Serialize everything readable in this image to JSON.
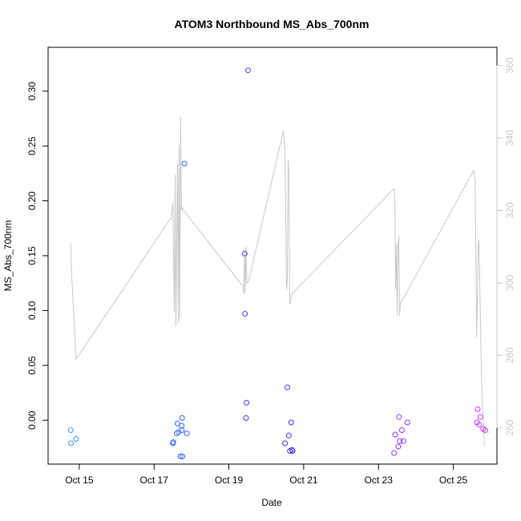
{
  "chart_data": {
    "type": "scatter",
    "title": "ATOM3 Northbound MS_Abs_700nm",
    "xlabel": "Date",
    "ylabel": "MS_Abs_700nm",
    "x_ticks": [
      "Oct 15",
      "Oct 17",
      "Oct 19",
      "Oct 21",
      "Oct 23",
      "Oct 25"
    ],
    "y_ticks": [
      "0.00",
      "0.05",
      "0.10",
      "0.15",
      "0.20",
      "0.25",
      "0.30"
    ],
    "y2_ticks": [
      "260",
      "280",
      "300",
      "320",
      "340",
      "360"
    ],
    "xlim": [
      "2016-10-14 04:00",
      "2016-10-26 04:00"
    ],
    "ylim": [
      -0.04,
      0.34
    ],
    "y2lim": [
      250,
      365
    ],
    "colors": {
      "points_start": "#3399ff",
      "points_mid": "#3333ff",
      "points_end": "#cc33ff",
      "line": "#c8c8c8",
      "right_axis": "#c8c8c8"
    },
    "series": [
      {
        "type": "scatter",
        "x": [
          "2016-10-14 18:30",
          "2016-10-14 18:40",
          "2016-10-14 22:00",
          "2016-10-17 12:00",
          "2016-10-17 12:20",
          "2016-10-17 14:30",
          "2016-10-17 15:00",
          "2016-10-17 15:40",
          "2016-10-17 16:50",
          "2016-10-17 17:40",
          "2016-10-17 17:50",
          "2016-10-17 18:00",
          "2016-10-17 18:10",
          "2016-10-17 19:30",
          "2016-10-17 21:00",
          "2016-10-19 10:10",
          "2016-10-19 10:20",
          "2016-10-19 11:00",
          "2016-10-19 11:20",
          "2016-10-19 12:20",
          "2016-10-20 12:00",
          "2016-10-20 13:30",
          "2016-10-20 14:30",
          "2016-10-20 15:10",
          "2016-10-20 16:00",
          "2016-10-20 16:30",
          "2016-10-20 16:50",
          "2016-10-23 10:00",
          "2016-10-23 10:40",
          "2016-10-23 12:40",
          "2016-10-23 13:10",
          "2016-10-23 13:40",
          "2016-10-23 15:00",
          "2016-10-23 16:00",
          "2016-10-23 18:30",
          "2016-10-25 15:10",
          "2016-10-25 15:40",
          "2016-10-25 16:40",
          "2016-10-25 17:20",
          "2016-10-25 19:10",
          "2016-10-25 20:30"
        ],
        "y": [
          -0.009,
          -0.021,
          -0.017,
          -0.021,
          -0.02,
          -0.012,
          -0.003,
          -0.011,
          -0.033,
          -0.005,
          -0.009,
          0.002,
          -0.033,
          0.234,
          -0.012,
          0.152,
          0.097,
          0.002,
          0.016,
          0.319,
          -0.021,
          0.03,
          -0.014,
          -0.028,
          -0.002,
          -0.027,
          -0.028,
          -0.03,
          -0.013,
          -0.024,
          0.003,
          -0.019,
          -0.009,
          -0.019,
          -0.002,
          -0.002,
          0.01,
          -0.004,
          0.003,
          -0.008,
          -0.009
        ]
      },
      {
        "type": "line",
        "axis": "right",
        "x": [
          "2016-10-14 18:30",
          "2016-10-14 19:00",
          "2016-10-14 22:00",
          "2016-10-17 11:00",
          "2016-10-17 12:00",
          "2016-10-17 13:00",
          "2016-10-17 13:30",
          "2016-10-17 14:00",
          "2016-10-17 15:00",
          "2016-10-17 15:30",
          "2016-10-17 16:00",
          "2016-10-17 16:30",
          "2016-10-17 17:00",
          "2016-10-17 17:30",
          "2016-10-17 18:00",
          "2016-10-17 18:30",
          "2016-10-17 19:00",
          "2016-10-19 09:00",
          "2016-10-19 09:30",
          "2016-10-19 10:00",
          "2016-10-19 10:30",
          "2016-10-19 11:00",
          "2016-10-19 11:30",
          "2016-10-19 12:00",
          "2016-10-19 13:00",
          "2016-10-20 11:00",
          "2016-10-20 12:00",
          "2016-10-20 13:00",
          "2016-10-20 13:30",
          "2016-10-20 14:00",
          "2016-10-20 14:30",
          "2016-10-20 15:00",
          "2016-10-20 15:30",
          "2016-10-20 16:00",
          "2016-10-20 16:30",
          "2016-10-23 10:00",
          "2016-10-23 10:30",
          "2016-10-23 11:00",
          "2016-10-23 11:30",
          "2016-10-23 12:00",
          "2016-10-23 12:30",
          "2016-10-23 13:00",
          "2016-10-23 13:30",
          "2016-10-23 14:00",
          "2016-10-23 14:30",
          "2016-10-23 15:00",
          "2016-10-25 13:00",
          "2016-10-25 14:00",
          "2016-10-25 15:00",
          "2016-10-25 16:00",
          "2016-10-25 16:30",
          "2016-10-25 17:00",
          "2016-10-25 17:30",
          "2016-10-25 18:00",
          "2016-10-25 18:30",
          "2016-10-25 19:00",
          "2016-10-25 20:00"
        ],
        "y": [
          311,
          303,
          279,
          318,
          322,
          292,
          330,
          288,
          333,
          289,
          338,
          290,
          346,
          320,
          321,
          320,
          320,
          299,
          297,
          309,
          297,
          310,
          300,
          300,
          301,
          342,
          337,
          298,
          300,
          334,
          330,
          294,
          295,
          296,
          297,
          326,
          322,
          298,
          311,
          291,
          310,
          313,
          291,
          294,
          295,
          295,
          331,
          328,
          285,
          312,
          311,
          299,
          288,
          274,
          268,
          264,
          255
        ]
      }
    ],
    "grid": false,
    "legend": "none"
  }
}
